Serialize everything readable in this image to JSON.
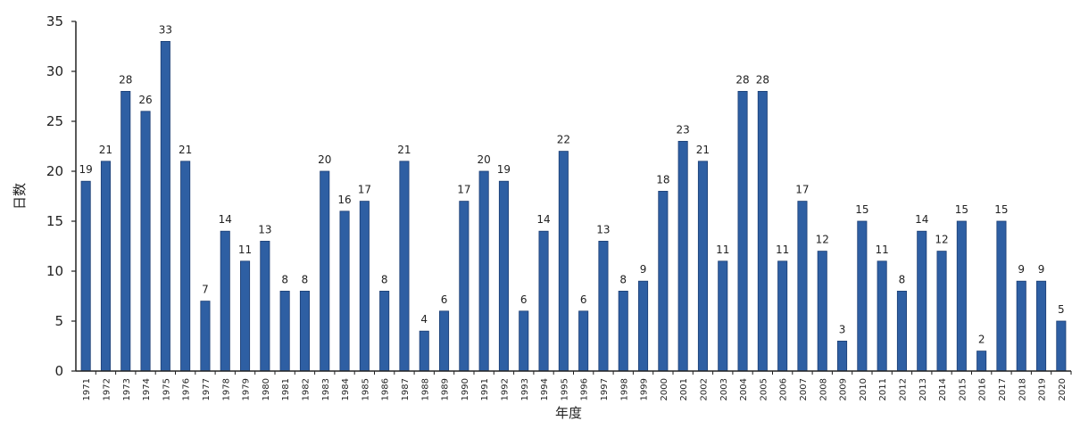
{
  "chart_data": {
    "type": "bar",
    "title": "",
    "xlabel": "年度",
    "ylabel": "日数",
    "ylim": [
      0,
      35
    ],
    "yticks": [
      0,
      5,
      10,
      15,
      20,
      25,
      30,
      35
    ],
    "grid": false,
    "legend": false,
    "bar_color": "#2e5fa3",
    "categories": [
      "1971",
      "1972",
      "1973",
      "1974",
      "1975",
      "1976",
      "1977",
      "1978",
      "1979",
      "1980",
      "1981",
      "1982",
      "1983",
      "1984",
      "1985",
      "1986",
      "1987",
      "1988",
      "1989",
      "1990",
      "1991",
      "1992",
      "1993",
      "1994",
      "1995",
      "1996",
      "1997",
      "1998",
      "1999",
      "2000",
      "2001",
      "2002",
      "2003",
      "2004",
      "2005",
      "2006",
      "2007",
      "2008",
      "2009",
      "2010",
      "2011",
      "2012",
      "2013",
      "2014",
      "2015",
      "2016",
      "2017",
      "2018",
      "2019",
      "2020"
    ],
    "values": [
      19,
      21,
      28,
      26,
      33,
      21,
      7,
      14,
      11,
      13,
      8,
      8,
      20,
      16,
      17,
      8,
      21,
      4,
      6,
      17,
      20,
      19,
      6,
      14,
      22,
      6,
      13,
      8,
      9,
      18,
      23,
      21,
      11,
      28,
      28,
      11,
      17,
      12,
      3,
      15,
      11,
      8,
      14,
      12,
      15,
      2,
      15,
      9,
      9,
      5
    ]
  }
}
